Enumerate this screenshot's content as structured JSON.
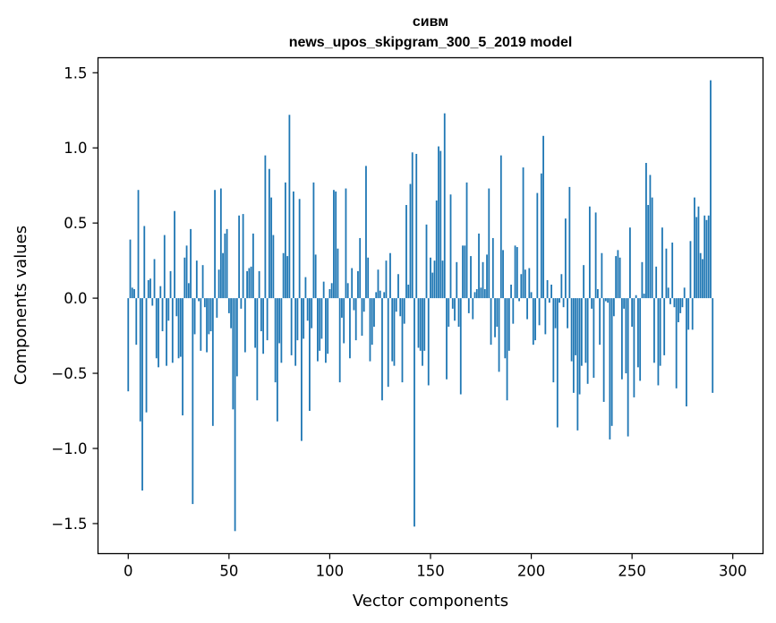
{
  "chart_data": {
    "type": "bar",
    "title": "сивм",
    "subtitle": "news_upos_skipgram_300_5_2019 model",
    "xlabel": "Vector components",
    "ylabel": "Components values",
    "xlim": [
      -15,
      315
    ],
    "ylim": [
      -1.7,
      1.6
    ],
    "xticks": [
      0,
      50,
      100,
      150,
      200,
      250,
      300
    ],
    "yticks": [
      -1.5,
      -1.0,
      -0.5,
      0.0,
      0.5,
      1.0,
      1.5
    ],
    "xtick_labels": [
      "0",
      "50",
      "100",
      "150",
      "200",
      "250",
      "300"
    ],
    "ytick_labels": [
      "−1.5",
      "−1.0",
      "−0.5",
      "0.0",
      "0.5",
      "1.0",
      "1.5"
    ],
    "grid": false,
    "bar_color": "#1f77b4",
    "values": [
      -0.62,
      0.39,
      0.07,
      0.06,
      -0.31,
      0.72,
      -0.82,
      -1.28,
      0.48,
      -0.76,
      0.12,
      0.13,
      -0.05,
      0.26,
      -0.4,
      -0.46,
      0.08,
      -0.22,
      0.42,
      -0.45,
      -0.15,
      0.18,
      -0.43,
      0.58,
      -0.12,
      -0.4,
      -0.39,
      -0.78,
      0.27,
      0.35,
      0.1,
      0.46,
      -1.37,
      -0.24,
      0.25,
      -0.02,
      -0.35,
      0.22,
      -0.06,
      -0.36,
      -0.24,
      -0.22,
      -0.85,
      0.72,
      -0.13,
      0.19,
      0.73,
      0.3,
      0.43,
      0.46,
      -0.1,
      -0.2,
      -0.74,
      -1.55,
      -0.52,
      0.55,
      -0.07,
      0.56,
      -0.36,
      0.18,
      0.2,
      0.21,
      0.43,
      -0.33,
      -0.68,
      0.18,
      -0.22,
      -0.37,
      0.95,
      -0.28,
      0.86,
      0.67,
      0.42,
      -0.56,
      -0.82,
      -0.3,
      -0.43,
      0.3,
      0.77,
      0.28,
      1.22,
      -0.38,
      0.71,
      -0.45,
      -0.28,
      0.66,
      -0.95,
      -0.27,
      0.14,
      -0.15,
      -0.75,
      -0.2,
      0.77,
      0.29,
      -0.42,
      -0.35,
      -0.27,
      0.11,
      -0.43,
      -0.37,
      0.06,
      0.1,
      0.72,
      0.71,
      0.33,
      -0.56,
      -0.13,
      -0.3,
      0.73,
      0.1,
      -0.4,
      0.2,
      -0.08,
      -0.28,
      0.18,
      0.4,
      -0.25,
      -0.09,
      0.88,
      0.27,
      -0.42,
      -0.31,
      -0.19,
      0.04,
      0.19,
      0.05,
      -0.68,
      0.04,
      0.25,
      -0.59,
      0.3,
      -0.42,
      -0.45,
      -0.09,
      0.16,
      -0.12,
      -0.56,
      -0.17,
      0.62,
      0.09,
      0.76,
      0.97,
      -1.52,
      0.96,
      -0.33,
      -0.35,
      -0.45,
      -0.35,
      0.49,
      -0.58,
      0.27,
      0.17,
      0.25,
      0.65,
      1.01,
      0.98,
      0.25,
      1.23,
      -0.54,
      -0.19,
      0.69,
      -0.07,
      -0.15,
      0.24,
      -0.19,
      -0.64,
      0.35,
      0.35,
      0.77,
      -0.1,
      0.28,
      -0.14,
      0.04,
      0.06,
      0.43,
      0.07,
      0.24,
      0.06,
      0.29,
      0.73,
      -0.31,
      0.4,
      -0.26,
      -0.19,
      -0.49,
      0.95,
      0.32,
      -0.4,
      -0.68,
      -0.35,
      0.09,
      -0.17,
      0.35,
      0.34,
      -0.02,
      0.16,
      0.87,
      0.19,
      -0.14,
      0.2,
      0.04,
      -0.31,
      -0.28,
      0.7,
      -0.18,
      0.83,
      1.08,
      -0.24,
      0.12,
      -0.03,
      0.09,
      -0.56,
      -0.2,
      -0.86,
      -0.03,
      0.16,
      -0.06,
      0.53,
      -0.2,
      0.74,
      -0.42,
      -0.63,
      -0.38,
      -0.88,
      -0.64,
      -0.45,
      0.22,
      -0.43,
      -0.57,
      0.61,
      -0.07,
      -0.53,
      0.57,
      0.06,
      -0.31,
      0.3,
      -0.69,
      -0.02,
      -0.03,
      -0.94,
      -0.85,
      -0.12,
      0.28,
      0.32,
      0.27,
      -0.54,
      -0.07,
      -0.5,
      -0.92,
      0.47,
      -0.19,
      -0.66,
      0.02,
      -0.46,
      -0.55,
      0.24,
      0.03,
      0.9,
      0.62,
      0.82,
      0.67,
      -0.43,
      0.21,
      -0.58,
      -0.45,
      0.47,
      -0.38,
      0.33,
      0.07,
      -0.04,
      0.37,
      -0.06,
      -0.6,
      -0.16,
      -0.1,
      -0.06,
      0.07,
      -0.72,
      -0.21,
      0.38,
      -0.21,
      0.67,
      0.54,
      0.61,
      0.3,
      0.26,
      0.55,
      0.52,
      0.55,
      1.45,
      -0.63
    ]
  }
}
